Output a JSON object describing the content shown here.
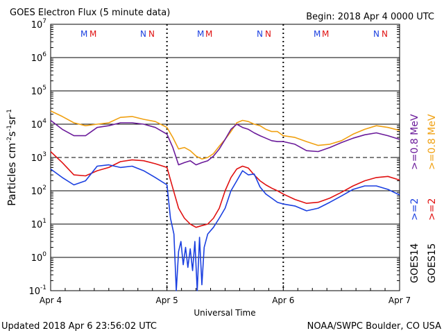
{
  "header": {
    "title": "GOES Electron Flux (5 minute data)",
    "begin": "Begin: 2018 Apr 4 0000 UTC"
  },
  "footer": {
    "updated": "Updated 2018 Apr  6 23:56:02 UTC",
    "credit": "NOAA/SWPC Boulder, CO USA"
  },
  "axes": {
    "xlabel": "Universal Time",
    "ylabel_main": "Particles cm",
    "ylabel_sup1": "-2",
    "ylabel_mid1": "s",
    "ylabel_sup2": "-1",
    "ylabel_mid2": "sr",
    "ylabel_sup3": "-1",
    "x_ticks": [
      "Apr 4",
      "Apr 5",
      "Apr 6",
      "Apr 7"
    ],
    "y_exponents": [
      "-1",
      "0",
      "1",
      "2",
      "3",
      "4",
      "5",
      "6",
      "7"
    ]
  },
  "markers": {
    "day1_left": "M",
    "day1_right": "N",
    "day2_left": "M",
    "day2_right": "N",
    "day3_left": "M",
    "day3_right": "N"
  },
  "legend": {
    "goes14": "GOES14",
    "goes15": "GOES15",
    "g14_ge2": ">=2",
    "g14_ge08": ">=0.8 MeV",
    "g15_ge2": ">=2",
    "g15_ge08": ">=0.8 MeV"
  },
  "colors": {
    "goes14_ge2": "#1a3fe0",
    "goes15_ge2": "#e01010",
    "goes14_ge08": "#6a1a9a",
    "goes15_ge08": "#f0a010"
  },
  "chart_data": {
    "type": "line",
    "title": "GOES Electron Flux (5 minute data)",
    "xlabel": "Universal Time",
    "ylabel": "Particles cm-2 s-1 sr-1",
    "yscale": "log",
    "ylim": [
      0.1,
      10000000
    ],
    "xlim": [
      0,
      3
    ],
    "x_unit": "days since 2018 Apr 4 0000 UTC",
    "grid": "horizontal decades; dashed line at 1000",
    "series": [
      {
        "name": "GOES15 >=0.8 MeV",
        "color": "#f0a010",
        "x": [
          0,
          0.1,
          0.2,
          0.3,
          0.4,
          0.5,
          0.6,
          0.7,
          0.8,
          0.9,
          1.0,
          1.05,
          1.1,
          1.15,
          1.2,
          1.25,
          1.3,
          1.35,
          1.4,
          1.45,
          1.5,
          1.55,
          1.6,
          1.65,
          1.7,
          1.75,
          1.8,
          1.85,
          1.9,
          1.95,
          2.0,
          2.1,
          2.2,
          2.3,
          2.4,
          2.5,
          2.6,
          2.7,
          2.8,
          2.9,
          3.0
        ],
        "y": [
          25000,
          17000,
          11000,
          9000,
          10000,
          11000,
          16000,
          17000,
          14000,
          12000,
          8000,
          4000,
          1800,
          2000,
          1600,
          1100,
          900,
          1000,
          1300,
          2200,
          3500,
          6000,
          11000,
          13000,
          12000,
          10000,
          9000,
          7000,
          6000,
          6000,
          4500,
          4000,
          3000,
          2300,
          2500,
          3200,
          5000,
          7000,
          9000,
          8000,
          6500
        ]
      },
      {
        "name": "GOES14 >=0.8 MeV",
        "color": "#6a1a9a",
        "x": [
          0,
          0.1,
          0.2,
          0.3,
          0.4,
          0.5,
          0.6,
          0.7,
          0.8,
          0.9,
          1.0,
          1.05,
          1.1,
          1.15,
          1.2,
          1.25,
          1.3,
          1.35,
          1.4,
          1.45,
          1.5,
          1.55,
          1.6,
          1.65,
          1.7,
          1.75,
          1.8,
          1.85,
          1.9,
          1.95,
          2.0,
          2.1,
          2.2,
          2.3,
          2.4,
          2.5,
          2.6,
          2.7,
          2.8,
          2.9,
          3.0
        ],
        "y": [
          13000,
          7000,
          4500,
          4500,
          8000,
          9000,
          11000,
          11000,
          10000,
          8000,
          5000,
          2000,
          600,
          700,
          800,
          600,
          700,
          800,
          1100,
          1800,
          3500,
          7000,
          10000,
          8000,
          7000,
          5500,
          4500,
          3800,
          3200,
          3000,
          3000,
          2500,
          1600,
          1500,
          2000,
          2800,
          3800,
          4800,
          5500,
          4500,
          3500
        ]
      },
      {
        "name": "GOES15 >=2 MeV",
        "color": "#e01010",
        "x": [
          0,
          0.1,
          0.2,
          0.3,
          0.4,
          0.5,
          0.6,
          0.7,
          0.8,
          0.9,
          1.0,
          1.05,
          1.1,
          1.15,
          1.2,
          1.25,
          1.3,
          1.35,
          1.4,
          1.45,
          1.5,
          1.55,
          1.6,
          1.65,
          1.7,
          1.75,
          1.8,
          1.85,
          1.9,
          1.95,
          2.0,
          2.1,
          2.2,
          2.3,
          2.4,
          2.5,
          2.6,
          2.7,
          2.8,
          2.9,
          3.0
        ],
        "y": [
          1500,
          700,
          300,
          280,
          400,
          500,
          750,
          850,
          800,
          650,
          500,
          120,
          30,
          15,
          10,
          8,
          9,
          10,
          15,
          30,
          100,
          250,
          450,
          550,
          480,
          300,
          200,
          150,
          120,
          100,
          80,
          55,
          42,
          45,
          60,
          90,
          140,
          200,
          250,
          270,
          210
        ]
      },
      {
        "name": "GOES14 >=2 MeV",
        "color": "#1a3fe0",
        "x": [
          0,
          0.1,
          0.2,
          0.3,
          0.4,
          0.5,
          0.6,
          0.7,
          0.8,
          0.9,
          1.0,
          1.03,
          1.06,
          1.08,
          1.1,
          1.12,
          1.14,
          1.16,
          1.18,
          1.2,
          1.22,
          1.24,
          1.26,
          1.28,
          1.3,
          1.32,
          1.35,
          1.4,
          1.45,
          1.5,
          1.55,
          1.6,
          1.65,
          1.7,
          1.75,
          1.8,
          1.85,
          1.9,
          1.95,
          2.0,
          2.1,
          2.2,
          2.3,
          2.4,
          2.5,
          2.6,
          2.7,
          2.8,
          2.9,
          3.0
        ],
        "y": [
          450,
          250,
          150,
          200,
          550,
          600,
          500,
          550,
          400,
          250,
          150,
          15,
          5,
          0.1,
          1.5,
          3,
          0.6,
          2,
          0.5,
          1.8,
          0.4,
          3,
          0.1,
          4,
          0.15,
          2,
          5,
          8,
          15,
          30,
          100,
          200,
          400,
          300,
          320,
          130,
          80,
          60,
          45,
          40,
          35,
          25,
          30,
          45,
          70,
          110,
          140,
          140,
          110,
          75
        ]
      }
    ]
  }
}
